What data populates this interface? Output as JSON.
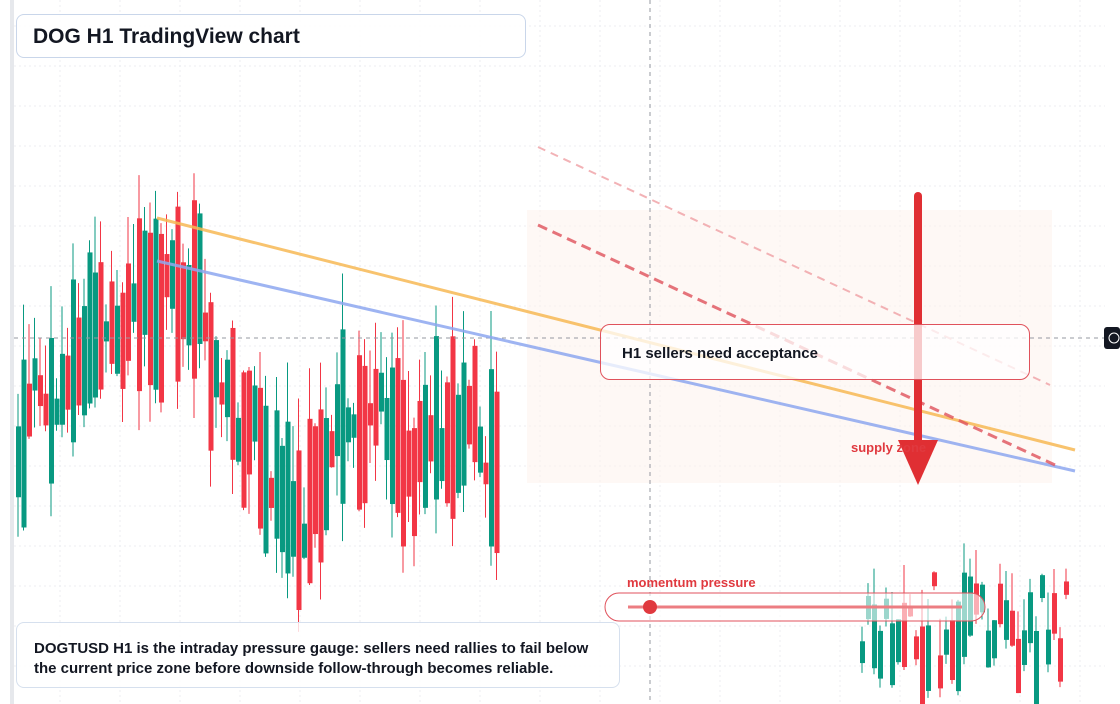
{
  "header": {
    "title": "DOG H1 TradingView chart"
  },
  "annotations": {
    "callout": "H1 sellers need acceptance",
    "supply_label": "supply zone",
    "momentum_label": "momentum pressure"
  },
  "caption": "DOGTUSD H1 is the intraday pressure gauge: sellers need rallies to fail below the current price zone before downside follow-through becomes reliable."
}
